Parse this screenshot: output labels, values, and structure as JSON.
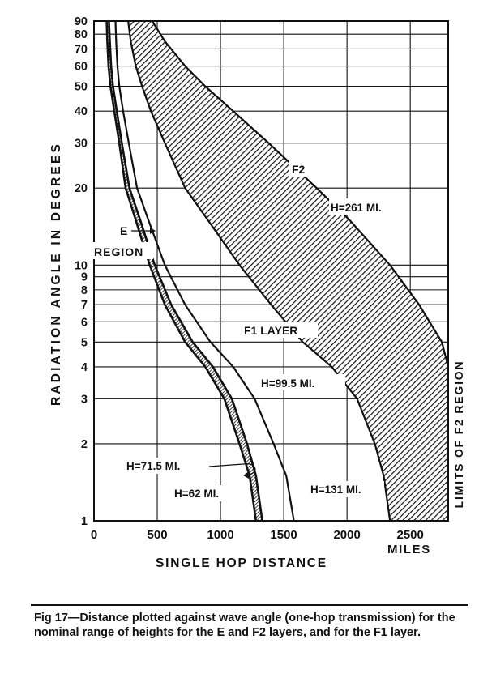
{
  "chart_data": {
    "type": "line",
    "title": "",
    "xlabel": "SINGLE HOP DISTANCE",
    "ylabel": "RADIATION ANGLE IN DEGREES",
    "xlim": [
      0,
      2800
    ],
    "ylim": [
      1,
      90
    ],
    "yscale": "log",
    "grid": true,
    "x_ticks": [
      0,
      500,
      1000,
      1500,
      2000,
      2500
    ],
    "x_tick_labels": [
      "0",
      "500",
      "1000",
      "1500",
      "2000",
      "2500"
    ],
    "x_unit_label": "MILES",
    "y_ticks": [
      1,
      2,
      3,
      4,
      5,
      6,
      7,
      8,
      9,
      10,
      20,
      30,
      40,
      50,
      60,
      70,
      80,
      90
    ],
    "y_tick_labels": [
      "1",
      "2",
      "3",
      "4",
      "5",
      "6",
      "7",
      "8",
      "9",
      "10",
      "20",
      "30",
      "40",
      "50",
      "60",
      "70",
      "80",
      "90"
    ],
    "series": [
      {
        "name": "H=62 MI.",
        "band": "E",
        "x": [
          1280,
          1230,
          1150,
          1030,
          880,
          720,
          560,
          440,
          330,
          250,
          200,
          160,
          130,
          115,
          105,
          100
        ],
        "y": [
          1,
          1.5,
          2,
          3,
          4,
          5,
          7,
          10,
          15,
          20,
          30,
          40,
          50,
          60,
          75,
          90
        ]
      },
      {
        "name": "H=71.5 MI.",
        "band": "E",
        "x": [
          1330,
          1280,
          1210,
          1090,
          940,
          780,
          610,
          480,
          365,
          280,
          220,
          180,
          150,
          135,
          125,
          118
        ],
        "y": [
          1,
          1.5,
          2,
          3,
          4,
          5,
          7,
          10,
          15,
          20,
          30,
          40,
          50,
          60,
          75,
          90
        ]
      },
      {
        "name": "H=99.5 MI.",
        "x": [
          1580,
          1520,
          1420,
          1270,
          1100,
          920,
          720,
          560,
          430,
          340,
          275,
          230,
          200,
          185,
          175,
          170
        ],
        "y": [
          1,
          1.5,
          2,
          3,
          4,
          5,
          7,
          10,
          15,
          20,
          30,
          40,
          50,
          60,
          75,
          90
        ]
      },
      {
        "name": "H=131 MI.",
        "band": "F2",
        "x": [
          2340,
          2290,
          2220,
          2080,
          1880,
          1650,
          1400,
          1150,
          900,
          720,
          560,
          450,
          380,
          330,
          290,
          270
        ],
        "y": [
          1,
          1.5,
          2,
          3,
          4,
          5,
          7,
          10,
          15,
          20,
          30,
          40,
          50,
          60,
          75,
          90
        ]
      },
      {
        "name": "H=261 MI.",
        "band": "F2",
        "x": [
          2800,
          2800,
          2800,
          2800,
          2800,
          2750,
          2570,
          2340,
          2020,
          1760,
          1380,
          1100,
          880,
          720,
          560,
          460
        ],
        "y": [
          1,
          1.5,
          2,
          3,
          4,
          5,
          7,
          10,
          15,
          20,
          30,
          40,
          50,
          60,
          75,
          90
        ]
      }
    ],
    "annotations": [
      "E",
      "REGION",
      "F1 LAYER",
      "F2",
      "H=261 MI.",
      "H=99.5 MI.",
      "H=71.5 MI.",
      "H=62 MI.",
      "H=131 MI.",
      "LIMITS OF F2 REGION"
    ]
  },
  "caption": "Fig 17—Distance plotted against wave angle (one-hop transmission) for the nominal range of heights for the E and F2 layers, and for the F1 layer."
}
